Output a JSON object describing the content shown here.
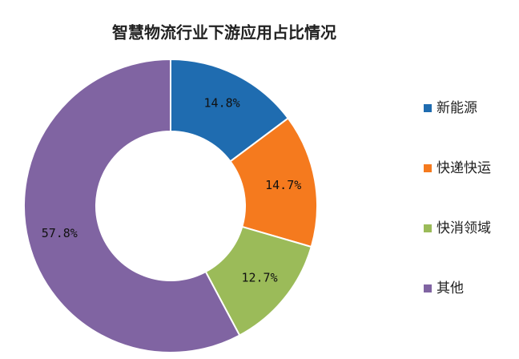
{
  "chart_data": {
    "type": "donut",
    "title": "智慧物流行业下游应用占比情况",
    "categories": [
      "新能源",
      "快递快运",
      "快消领域",
      "其他"
    ],
    "values": [
      14.8,
      14.7,
      12.7,
      57.8
    ],
    "value_labels": [
      "14.8%",
      "14.7%",
      "12.7%",
      "57.8%"
    ],
    "colors": [
      "#1f6cb0",
      "#f57a1e",
      "#9bbb59",
      "#8064a2"
    ],
    "legend": "right"
  }
}
